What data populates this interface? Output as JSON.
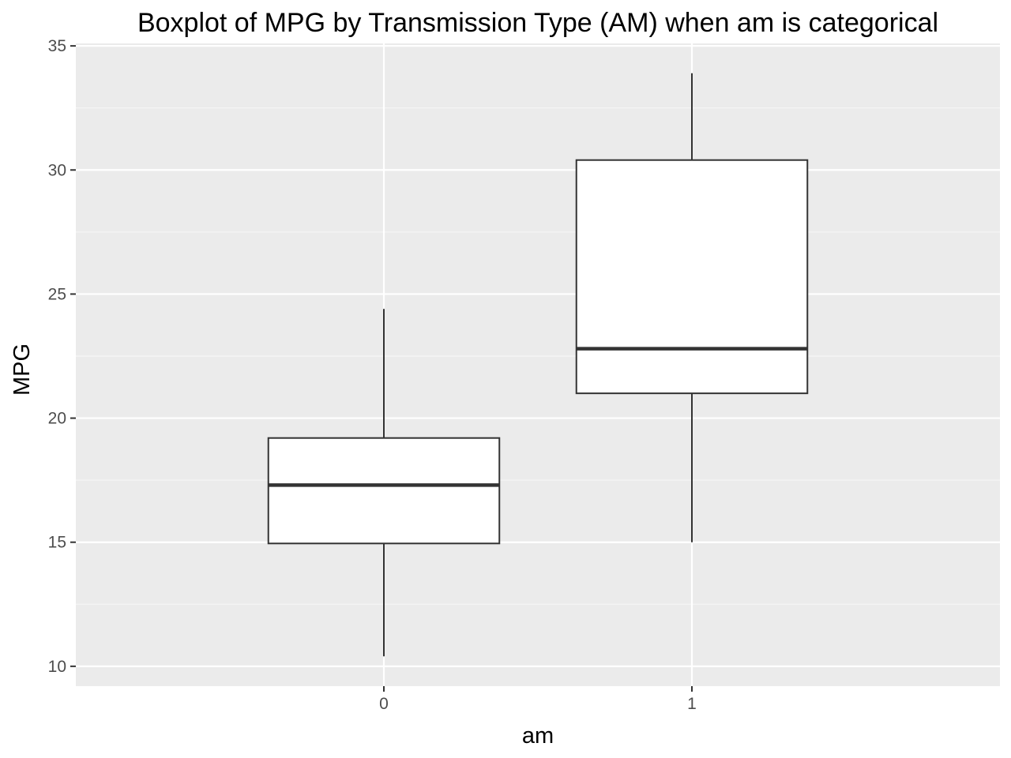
{
  "chart_data": {
    "type": "boxplot",
    "title": "Boxplot of MPG by Transmission Type (AM) when am is categorical",
    "xlabel": "am",
    "ylabel": "MPG",
    "categories": [
      "0",
      "1"
    ],
    "boxes": [
      {
        "category": "0",
        "whisker_low": 10.4,
        "q1": 14.95,
        "median": 17.3,
        "q3": 19.2,
        "whisker_high": 24.4
      },
      {
        "category": "1",
        "whisker_low": 15.0,
        "q1": 21.0,
        "median": 22.8,
        "q3": 30.4,
        "whisker_high": 33.9
      }
    ],
    "ylim": [
      9.2,
      35.1
    ],
    "y_ticks": [
      10,
      15,
      20,
      25,
      30,
      35
    ],
    "y_tick_labels": [
      "10",
      "15",
      "20",
      "25",
      "30",
      "35"
    ],
    "grid": true,
    "colors": {
      "panel_background": "#ebebeb",
      "grid_major": "#ffffff",
      "grid_minor": "#f5f5f5",
      "box_fill": "#ffffff",
      "box_stroke": "#333333",
      "tick_color": "#333333"
    }
  }
}
